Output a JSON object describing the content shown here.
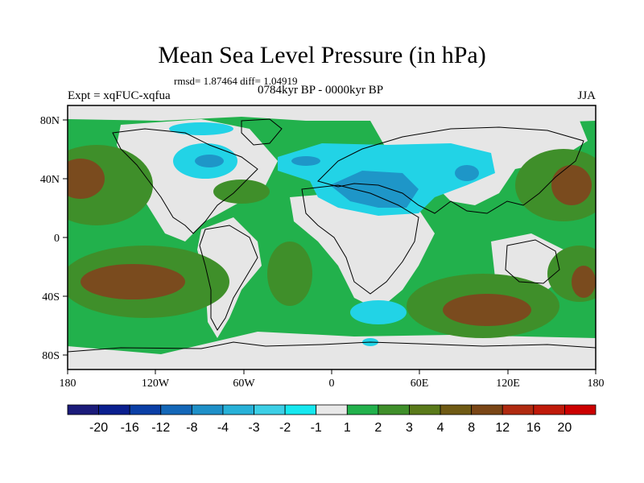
{
  "title": "Mean Sea Level Pressure (in hPa)",
  "stats": "rmsd= 1.87464 diff= 1.04919",
  "experiment": "Expt = xqFUC-xqfua",
  "period": "0784kyr BP - 0000kyr BP",
  "season": "JJA",
  "axes": {
    "x_ticks": [
      "180",
      "120W",
      "60W",
      "0",
      "60E",
      "120E",
      "180"
    ],
    "y_ticks": [
      "80N",
      "40N",
      "0",
      "40S",
      "80S"
    ]
  },
  "colorbar": {
    "colors": [
      "#1b1b7a",
      "#0a1f8f",
      "#0b3fa6",
      "#1467b8",
      "#1e90c8",
      "#27b1d8",
      "#3ccfe6",
      "#16e8f0",
      "#e8e8e8",
      "#22b14c",
      "#3f8f2a",
      "#5a7a1a",
      "#6f5a14",
      "#7a4616",
      "#b02a10",
      "#c01a0a",
      "#cc0000"
    ],
    "labels": [
      "-20",
      "-16",
      "-12",
      "-8",
      "-4",
      "-3",
      "-2",
      "-1",
      "1",
      "2",
      "3",
      "4",
      "8",
      "12",
      "16",
      "20"
    ]
  },
  "colors": {
    "ocean_positive": "#22b14c",
    "land_neutral": "#e6e6e6",
    "dark_green": "#3f8f2a",
    "brown": "#7a4b1e",
    "cyan": "#22d3e6",
    "blue": "#1e96c8"
  }
}
